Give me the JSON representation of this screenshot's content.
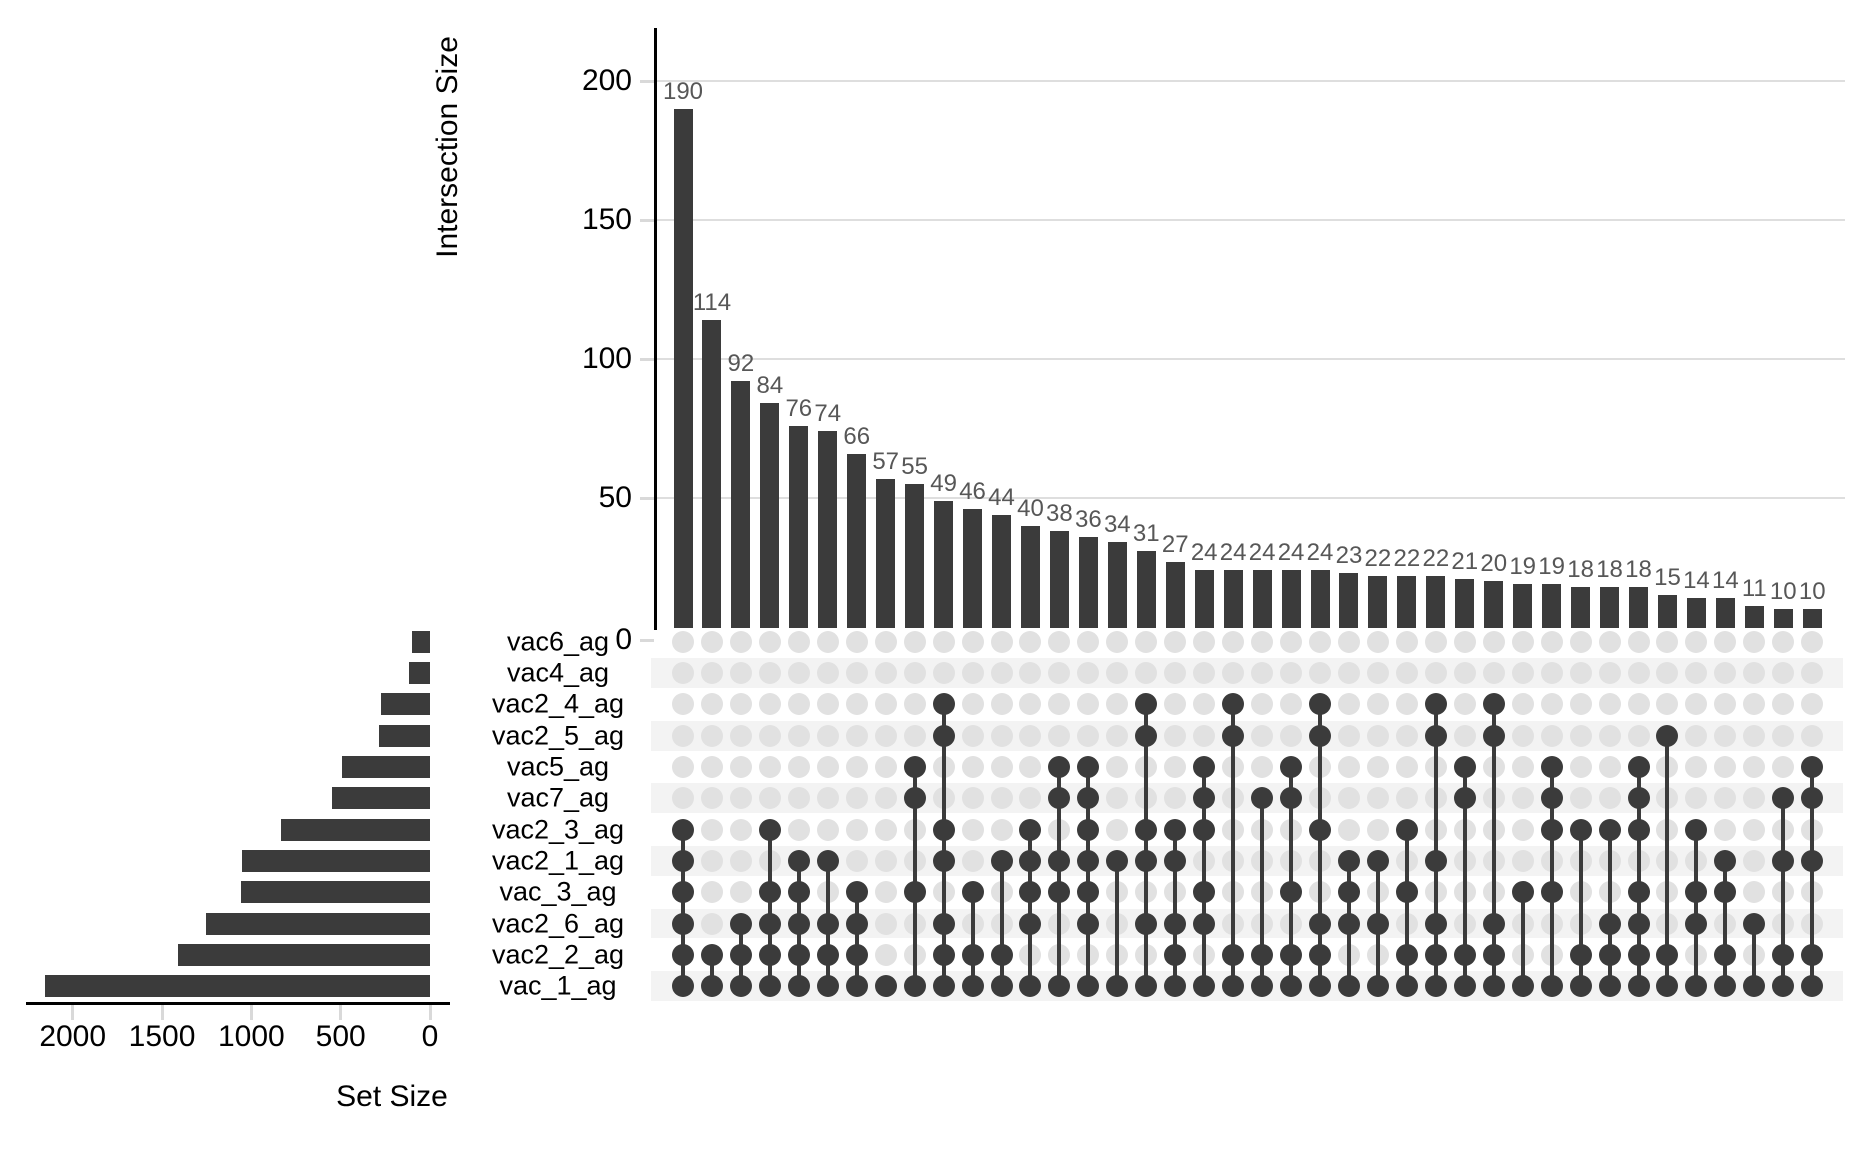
{
  "chart_data": {
    "type": "upset",
    "description": "UpSet plot: intersection size bar chart (top), set size bar chart (left), membership dot matrix (bottom right)",
    "intersection_axis": {
      "title": "Intersection Size",
      "ticks": [
        0,
        50,
        100,
        150,
        200
      ],
      "range": [
        0,
        200
      ],
      "grid": true
    },
    "set_axis": {
      "title": "Set Size",
      "ticks": [
        2000,
        1500,
        1000,
        500,
        0
      ],
      "range": [
        0,
        2000
      ]
    },
    "sets": [
      {
        "name": "vac6_ag",
        "size": 100
      },
      {
        "name": "vac4_ag",
        "size": 115
      },
      {
        "name": "vac2_4_ag",
        "size": 275
      },
      {
        "name": "vac2_5_ag",
        "size": 285
      },
      {
        "name": "vac5_ag",
        "size": 490
      },
      {
        "name": "vac7_ag",
        "size": 550
      },
      {
        "name": "vac2_3_ag",
        "size": 835
      },
      {
        "name": "vac2_1_ag",
        "size": 1050
      },
      {
        "name": "vac_3_ag",
        "size": 1060
      },
      {
        "name": "vac2_6_ag",
        "size": 1255
      },
      {
        "name": "vac2_2_ag",
        "size": 1410
      },
      {
        "name": "vac_1_ag",
        "size": 2155
      }
    ],
    "intersections": [
      {
        "size": 190,
        "sets": [
          "vac2_3_ag",
          "vac2_1_ag",
          "vac_3_ag",
          "vac2_6_ag",
          "vac2_2_ag",
          "vac_1_ag"
        ]
      },
      {
        "size": 114,
        "sets": [
          "vac2_2_ag",
          "vac_1_ag"
        ]
      },
      {
        "size": 92,
        "sets": [
          "vac2_6_ag",
          "vac2_2_ag",
          "vac_1_ag"
        ]
      },
      {
        "size": 84,
        "sets": [
          "vac2_3_ag",
          "vac_3_ag",
          "vac2_6_ag",
          "vac2_2_ag",
          "vac_1_ag"
        ]
      },
      {
        "size": 76,
        "sets": [
          "vac2_1_ag",
          "vac_3_ag",
          "vac2_6_ag",
          "vac2_2_ag",
          "vac_1_ag"
        ]
      },
      {
        "size": 74,
        "sets": [
          "vac2_1_ag",
          "vac2_6_ag",
          "vac2_2_ag",
          "vac_1_ag"
        ]
      },
      {
        "size": 66,
        "sets": [
          "vac_3_ag",
          "vac2_6_ag",
          "vac2_2_ag",
          "vac_1_ag"
        ]
      },
      {
        "size": 57,
        "sets": [
          "vac_1_ag"
        ]
      },
      {
        "size": 55,
        "sets": [
          "vac5_ag",
          "vac7_ag",
          "vac_3_ag",
          "vac_1_ag"
        ]
      },
      {
        "size": 49,
        "sets": [
          "vac2_4_ag",
          "vac2_5_ag",
          "vac2_3_ag",
          "vac2_1_ag",
          "vac2_6_ag",
          "vac2_2_ag",
          "vac_1_ag"
        ]
      },
      {
        "size": 46,
        "sets": [
          "vac_3_ag",
          "vac2_2_ag",
          "vac_1_ag"
        ]
      },
      {
        "size": 44,
        "sets": [
          "vac2_1_ag",
          "vac2_2_ag",
          "vac_1_ag"
        ]
      },
      {
        "size": 40,
        "sets": [
          "vac2_3_ag",
          "vac2_1_ag",
          "vac_3_ag",
          "vac2_6_ag",
          "vac_1_ag"
        ]
      },
      {
        "size": 38,
        "sets": [
          "vac5_ag",
          "vac7_ag",
          "vac2_1_ag",
          "vac_3_ag",
          "vac_1_ag"
        ]
      },
      {
        "size": 36,
        "sets": [
          "vac5_ag",
          "vac7_ag",
          "vac2_3_ag",
          "vac2_1_ag",
          "vac_3_ag",
          "vac2_6_ag",
          "vac_1_ag"
        ]
      },
      {
        "size": 34,
        "sets": [
          "vac2_1_ag",
          "vac_1_ag"
        ]
      },
      {
        "size": 31,
        "sets": [
          "vac2_4_ag",
          "vac2_5_ag",
          "vac2_3_ag",
          "vac2_1_ag",
          "vac2_6_ag",
          "vac_1_ag"
        ]
      },
      {
        "size": 27,
        "sets": [
          "vac2_3_ag",
          "vac2_1_ag",
          "vac2_6_ag",
          "vac2_2_ag",
          "vac_1_ag"
        ]
      },
      {
        "size": 24,
        "sets": [
          "vac5_ag",
          "vac7_ag",
          "vac2_3_ag",
          "vac_3_ag",
          "vac2_6_ag",
          "vac_1_ag"
        ]
      },
      {
        "size": 24,
        "sets": [
          "vac2_4_ag",
          "vac2_5_ag",
          "vac2_2_ag",
          "vac_1_ag"
        ]
      },
      {
        "size": 24,
        "sets": [
          "vac7_ag",
          "vac2_2_ag",
          "vac_1_ag"
        ]
      },
      {
        "size": 24,
        "sets": [
          "vac5_ag",
          "vac7_ag",
          "vac_3_ag",
          "vac2_2_ag",
          "vac_1_ag"
        ]
      },
      {
        "size": 24,
        "sets": [
          "vac2_4_ag",
          "vac2_5_ag",
          "vac2_3_ag",
          "vac2_6_ag",
          "vac2_2_ag",
          "vac_1_ag"
        ]
      },
      {
        "size": 23,
        "sets": [
          "vac2_1_ag",
          "vac_3_ag",
          "vac2_6_ag",
          "vac_1_ag"
        ]
      },
      {
        "size": 22,
        "sets": [
          "vac2_1_ag",
          "vac2_6_ag",
          "vac_1_ag"
        ]
      },
      {
        "size": 22,
        "sets": [
          "vac2_3_ag",
          "vac_3_ag",
          "vac2_2_ag",
          "vac_1_ag"
        ]
      },
      {
        "size": 22,
        "sets": [
          "vac2_4_ag",
          "vac2_5_ag",
          "vac2_1_ag",
          "vac2_6_ag",
          "vac2_2_ag",
          "vac_1_ag"
        ]
      },
      {
        "size": 21,
        "sets": [
          "vac5_ag",
          "vac7_ag",
          "vac2_2_ag",
          "vac_1_ag"
        ]
      },
      {
        "size": 20,
        "sets": [
          "vac2_4_ag",
          "vac2_5_ag",
          "vac2_6_ag",
          "vac2_2_ag",
          "vac_1_ag"
        ]
      },
      {
        "size": 19,
        "sets": [
          "vac_3_ag",
          "vac_1_ag"
        ]
      },
      {
        "size": 19,
        "sets": [
          "vac5_ag",
          "vac7_ag",
          "vac2_3_ag",
          "vac_3_ag",
          "vac_1_ag"
        ]
      },
      {
        "size": 18,
        "sets": [
          "vac2_3_ag",
          "vac2_2_ag",
          "vac_1_ag"
        ]
      },
      {
        "size": 18,
        "sets": [
          "vac2_3_ag",
          "vac2_6_ag",
          "vac2_2_ag",
          "vac_1_ag"
        ]
      },
      {
        "size": 18,
        "sets": [
          "vac5_ag",
          "vac7_ag",
          "vac2_3_ag",
          "vac_3_ag",
          "vac2_6_ag",
          "vac2_2_ag",
          "vac_1_ag"
        ]
      },
      {
        "size": 15,
        "sets": [
          "vac2_5_ag",
          "vac2_2_ag",
          "vac_1_ag"
        ]
      },
      {
        "size": 14,
        "sets": [
          "vac2_3_ag",
          "vac_3_ag",
          "vac2_6_ag",
          "vac_1_ag"
        ]
      },
      {
        "size": 14,
        "sets": [
          "vac2_1_ag",
          "vac_3_ag",
          "vac2_2_ag",
          "vac_1_ag"
        ]
      },
      {
        "size": 11,
        "sets": [
          "vac2_6_ag",
          "vac_1_ag"
        ]
      },
      {
        "size": 10,
        "sets": [
          "vac7_ag",
          "vac2_1_ag",
          "vac2_2_ag",
          "vac_1_ag"
        ]
      },
      {
        "size": 10,
        "sets": [
          "vac5_ag",
          "vac7_ag",
          "vac2_1_ag",
          "vac2_2_ag",
          "vac_1_ag"
        ]
      }
    ],
    "colors": {
      "bar": "#3b3b3b",
      "filled_dot": "#3b3b3b",
      "empty_dot": "#e1e1e1",
      "row_band": "#f3f3f3",
      "gridline": "#dedede",
      "tick": "#d9d9d9",
      "axis": "#000000",
      "value_label": "#575757",
      "text": "#000000"
    }
  }
}
